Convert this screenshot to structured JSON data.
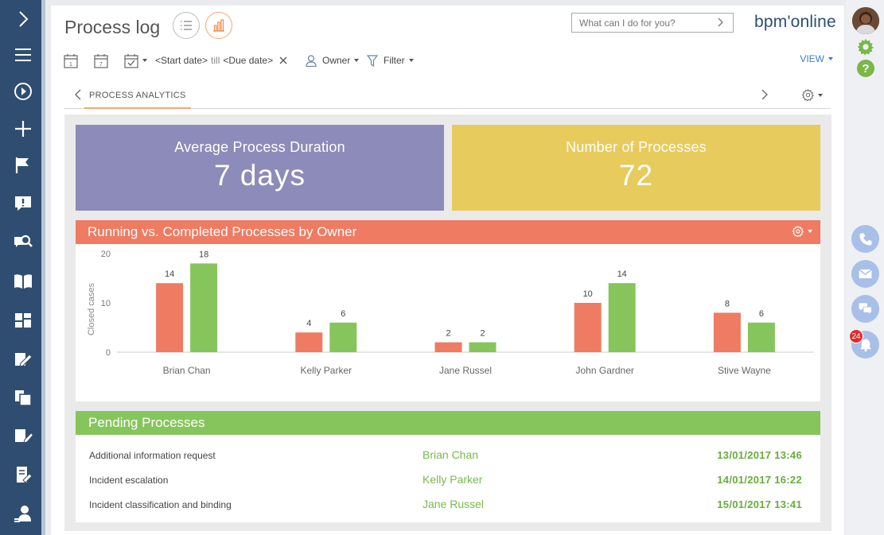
{
  "app": {
    "title": "Process log",
    "brand": "bpm'online",
    "search_placeholder": "What can I do for you?",
    "colors": {
      "nav": "#2f4d70",
      "accent_orange": "#ee7b62",
      "accent_green": "#86c55c",
      "metric_purple": "#8d8bb9",
      "metric_yellow": "#e7cb5c"
    }
  },
  "filters": {
    "start_date": "<Start date>",
    "till": "till",
    "due_date": "<Due date>",
    "owner": "Owner",
    "filter": "Filter",
    "view": "VIEW"
  },
  "tabs": {
    "active": "PROCESS ANALYTICS"
  },
  "metrics": {
    "avg_duration": {
      "label": "Average Process Duration",
      "value": "7 days"
    },
    "count": {
      "label": "Number of Processes",
      "value": "72"
    }
  },
  "chart_data": {
    "type": "bar",
    "title": "Running vs. Completed Processes by Owner",
    "ylabel": "Closed cases",
    "xlabel": "",
    "ylim": [
      0,
      20
    ],
    "yticks": [
      "0",
      "10",
      "20"
    ],
    "categories": [
      "Brian Chan",
      "Kelly Parker",
      "Jane Russel",
      "John Gardner",
      "Stive Wayne"
    ],
    "series": [
      {
        "name": "Running",
        "color": "#ee7b62",
        "values": [
          14,
          4,
          2,
          10,
          8
        ]
      },
      {
        "name": "Completed",
        "color": "#86c55c",
        "values": [
          18,
          6,
          2,
          14,
          6
        ]
      }
    ]
  },
  "pending": {
    "title": "Pending Processes",
    "rows": [
      {
        "name": "Additional information request",
        "owner": "Brian Chan",
        "date": "13/01/2017 13:46"
      },
      {
        "name": "Incident escalation",
        "owner": "Kelly Parker",
        "date": "14/01/2017 16:22"
      },
      {
        "name": "Incident classification and binding",
        "owner": "Jane Russel",
        "date": "15/01/2017 13:41"
      }
    ]
  },
  "notifications": {
    "count": "24"
  }
}
